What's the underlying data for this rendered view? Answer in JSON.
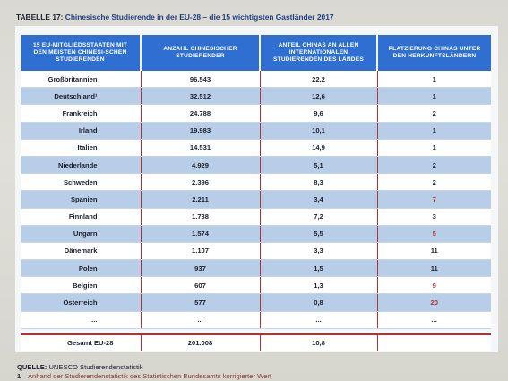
{
  "title": {
    "lead": "TABELLE 17:",
    "rest": "Chinesische Studierende in der EU-28 – die 15 wichtigsten Gastländer 2017"
  },
  "headers": [
    "15 EU-Mitgliedsstaaten mit den meisten chinesi-schen Studierenden",
    "Anzahl chinesischer Studierender",
    "Anteil Chinas an allen internationalen Studierenden des Landes",
    "Platzierung Chinas unter den Herkunftsländern"
  ],
  "rows": [
    {
      "country": "Großbritannien",
      "count": "96.543",
      "share": "22,2",
      "rank": "1"
    },
    {
      "country": "Deutschland¹",
      "count": "32.512",
      "share": "12,6",
      "rank": "1"
    },
    {
      "country": "Frankreich",
      "count": "24.788",
      "share": "9,6",
      "rank": "2"
    },
    {
      "country": "Irland",
      "count": "19.983",
      "share": "10,1",
      "rank": "1"
    },
    {
      "country": "Italien",
      "count": "14.531",
      "share": "14,9",
      "rank": "1"
    },
    {
      "country": "Niederlande",
      "count": "4.929",
      "share": "5,1",
      "rank": "2"
    },
    {
      "country": "Schweden",
      "count": "2.396",
      "share": "8,3",
      "rank": "2"
    },
    {
      "country": "Spanien",
      "count": "2.211",
      "share": "3,4",
      "rank": "7"
    },
    {
      "country": "Finnland",
      "count": "1.738",
      "share": "7,2",
      "rank": "3"
    },
    {
      "country": "Ungarn",
      "count": "1.574",
      "share": "5,5",
      "rank": "5"
    },
    {
      "country": "Dänemark",
      "count": "1.107",
      "share": "3,3",
      "rank": "11"
    },
    {
      "country": "Polen",
      "count": "937",
      "share": "1,5",
      "rank": "11"
    },
    {
      "country": "Belgien",
      "count": "607",
      "share": "1,3",
      "rank": "9"
    },
    {
      "country": "Österreich",
      "count": "577",
      "share": "0,8",
      "rank": "20"
    },
    {
      "country": "...",
      "count": "...",
      "share": "...",
      "rank": "..."
    }
  ],
  "total": {
    "label": "Gesamt EU-28",
    "count": "201.008",
    "share": "10,8",
    "rank": ""
  },
  "source": {
    "key": "QUELLE:",
    "text": "UNESCO Studierendenstatistik"
  },
  "note": {
    "num": "1",
    "text": "Anhand der Studierendenstatistik des Statistischen Bundesamts korrigierter Wert"
  },
  "colors": {
    "header": "#2f6fd1",
    "shade": "#b8cde8",
    "divider": "#b4312e"
  }
}
